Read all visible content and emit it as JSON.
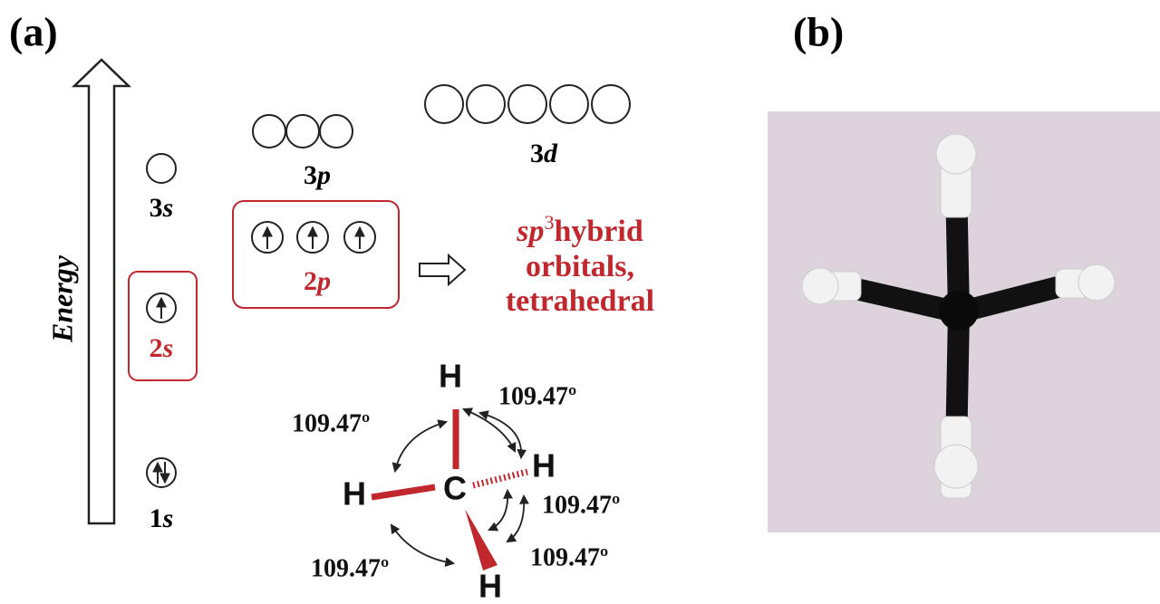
{
  "panels": {
    "a": "(a)",
    "b": "(b)"
  },
  "energy_axis": "Energy",
  "orbitals": [
    {
      "number": "3",
      "letter": "s"
    },
    {
      "number": "2",
      "letter": "s"
    },
    {
      "number": "1",
      "letter": "s"
    },
    {
      "number": "3",
      "letter": "p"
    },
    {
      "number": "3",
      "letter": "d"
    },
    {
      "number": "2",
      "letter": "p"
    }
  ],
  "hybrid": {
    "prefix": "sp",
    "exponent": "3",
    "word": "hybrid",
    "line2": "orbitals,",
    "line3": "tetrahedral"
  },
  "molecule": {
    "center": "C",
    "atoms": [
      "H",
      "H",
      "H",
      "H"
    ],
    "angles": [
      "109.47º",
      "109.47º",
      "109.47º",
      "109.47º",
      "109.47º"
    ]
  }
}
